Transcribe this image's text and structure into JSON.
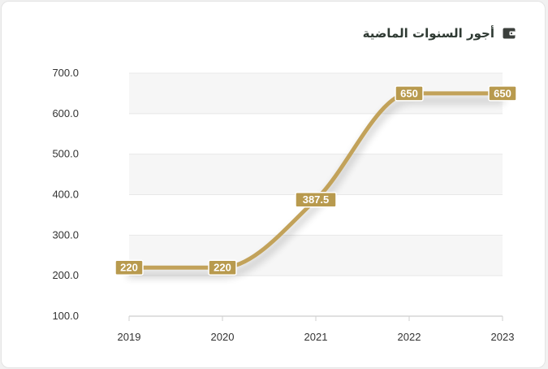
{
  "card": {
    "title": "أجور السنوات الماضية",
    "icon": "wallet-icon"
  },
  "colors": {
    "line": "#c2a25a",
    "label_bg": "#b89a4e",
    "band": "#f6f6f6",
    "grid": "#e8e8e8"
  },
  "chart_data": {
    "type": "line",
    "title": "أجور السنوات الماضية",
    "x": [
      "2019",
      "2020",
      "2021",
      "2022",
      "2023"
    ],
    "series": [
      {
        "values": [
          220,
          220,
          387.5,
          650,
          650
        ]
      }
    ],
    "data_labels": [
      "220",
      "220",
      "387.5",
      "650",
      "650"
    ],
    "y_ticks": [
      "700.0",
      "600.0",
      "500.0",
      "400.0",
      "300.0",
      "200.0",
      "100.0"
    ],
    "ylim": [
      100,
      700
    ],
    "smooth": true,
    "grid": true,
    "legend": "none"
  }
}
